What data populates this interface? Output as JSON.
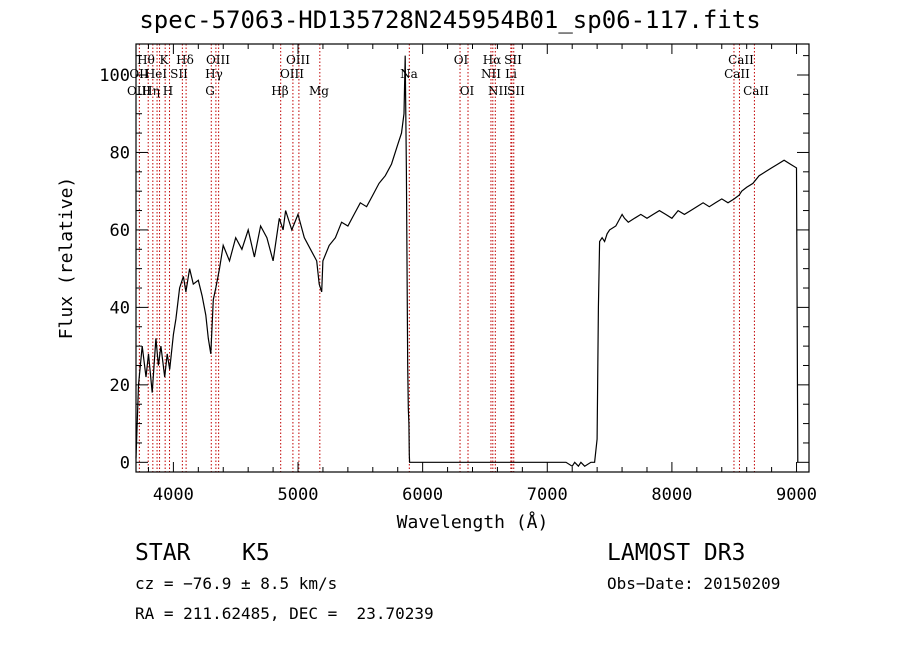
{
  "chart_data": {
    "type": "line",
    "title": "spec-57063-HD135728N245954B01_sp06-117.fits",
    "xlabel": "Wavelength (Å)",
    "ylabel": "Flux (relative)",
    "xlim": [
      3700,
      9100
    ],
    "ylim": [
      -2.5,
      108
    ],
    "x_ticks": [
      4000,
      5000,
      6000,
      7000,
      8000,
      9000
    ],
    "y_ticks": [
      0,
      20,
      40,
      60,
      80,
      100
    ],
    "x_tick_labels": [
      "4000",
      "5000",
      "6000",
      "7000",
      "8000",
      "9000"
    ],
    "y_tick_labels": [
      "0",
      "20",
      "40",
      "60",
      "80",
      "100"
    ],
    "series": [
      {
        "name": "flux",
        "x": [
          3700,
          3720,
          3750,
          3780,
          3800,
          3830,
          3860,
          3880,
          3900,
          3930,
          3950,
          3970,
          4000,
          4020,
          4050,
          4080,
          4100,
          4130,
          4160,
          4200,
          4230,
          4260,
          4280,
          4300,
          4320,
          4340,
          4370,
          4400,
          4450,
          4500,
          4550,
          4600,
          4650,
          4700,
          4750,
          4800,
          4850,
          4880,
          4900,
          4950,
          5000,
          5050,
          5100,
          5150,
          5170,
          5190,
          5200,
          5250,
          5300,
          5350,
          5400,
          5450,
          5500,
          5550,
          5600,
          5650,
          5700,
          5750,
          5800,
          5830,
          5850,
          5860,
          5870,
          5880,
          5885,
          5890,
          5893,
          5895,
          5900,
          5910,
          5950,
          6000,
          6200,
          6400,
          6600,
          6800,
          7000,
          7100,
          7150,
          7200,
          7220,
          7250,
          7270,
          7300,
          7350,
          7380,
          7400,
          7410,
          7420,
          7440,
          7460,
          7480,
          7500,
          7550,
          7600,
          7620,
          7650,
          7700,
          7750,
          7800,
          7850,
          7900,
          7950,
          8000,
          8050,
          8100,
          8150,
          8200,
          8250,
          8300,
          8350,
          8400,
          8450,
          8500,
          8540,
          8560,
          8600,
          8650,
          8700,
          8750,
          8800,
          8850,
          8900,
          8950,
          9000,
          9010
        ],
        "y": [
          1,
          20,
          30,
          22,
          28,
          18,
          32,
          25,
          30,
          22,
          28,
          24,
          33,
          37,
          45,
          48,
          44,
          50,
          46,
          47,
          43,
          38,
          32,
          28,
          42,
          45,
          50,
          56,
          52,
          58,
          55,
          60,
          53,
          61,
          58,
          52,
          63,
          60,
          65,
          60,
          64,
          58,
          55,
          52,
          46,
          44,
          52,
          56,
          58,
          62,
          61,
          64,
          67,
          66,
          69,
          72,
          74,
          77,
          82,
          85,
          90,
          105,
          75,
          25,
          14,
          10,
          2,
          0,
          0,
          0,
          0,
          0,
          0,
          0,
          0,
          0,
          0,
          0,
          0,
          -1,
          0,
          -1,
          0,
          -1,
          0,
          0,
          6,
          40,
          57,
          58,
          57,
          59,
          60,
          61,
          64,
          63,
          62,
          63,
          64,
          63,
          64,
          65,
          64,
          63,
          65,
          64,
          65,
          66,
          67,
          66,
          67,
          68,
          67,
          68,
          69,
          70,
          71,
          72,
          74,
          75,
          76,
          77,
          78,
          77,
          76,
          0
        ]
      }
    ],
    "line_labels": [
      {
        "label": "Hθ",
        "lines": [
          3798
        ]
      },
      {
        "label": "OII",
        "lines": [
          3727
        ]
      },
      {
        "label": "OIII",
        "lines": [
          3869
        ]
      },
      {
        "label": "HeI",
        "lines": [
          3889
        ]
      },
      {
        "label": "Hη",
        "lines": [
          3835
        ]
      },
      {
        "label": "K",
        "lines": [
          3934
        ]
      },
      {
        "label": "SII",
        "lines": [
          4072
        ]
      },
      {
        "label": "H",
        "lines": [
          3969
        ]
      },
      {
        "label": "Hδ",
        "lines": [
          4102
        ]
      },
      {
        "label": "OIII",
        "lines": [
          4363
        ]
      },
      {
        "label": "Hγ",
        "lines": [
          4341
        ]
      },
      {
        "label": "G",
        "lines": [
          4304
        ]
      },
      {
        "label": "OIII",
        "lines": [
          5007
        ]
      },
      {
        "label": "OIII",
        "lines": [
          4959
        ]
      },
      {
        "label": "Hβ",
        "lines": [
          4861
        ]
      },
      {
        "label": "Mg",
        "lines": [
          5175
        ]
      },
      {
        "label": "Na",
        "lines": [
          5893
        ]
      },
      {
        "label": "OI",
        "lines": [
          6300
        ]
      },
      {
        "label": "OI",
        "lines": [
          6364
        ]
      },
      {
        "label": "Hα",
        "lines": [
          6563
        ]
      },
      {
        "label": "SII",
        "lines": [
          6716
        ]
      },
      {
        "label": "NII",
        "lines": [
          6548
        ]
      },
      {
        "label": "Li",
        "lines": [
          6708
        ]
      },
      {
        "label": "NII",
        "lines": [
          6583
        ]
      },
      {
        "label": "SII",
        "lines": [
          6731
        ]
      },
      {
        "label": "CaII",
        "lines": [
          8542
        ]
      },
      {
        "label": "CaII",
        "lines": [
          8498
        ]
      },
      {
        "label": "CaII",
        "lines": [
          8662
        ]
      }
    ]
  },
  "info": {
    "class_label": "STAR",
    "subclass": "K5",
    "survey": "LAMOST DR3",
    "cz": "cz = −76.9 ± 8.5 km/s",
    "obs_date": "Obs−Date: 20150209",
    "coords": "RA = 211.62485, DEC =  23.70239"
  },
  "colors": {
    "spectrum": "#000000",
    "line_marker": "#c00000",
    "axes": "#000000"
  }
}
